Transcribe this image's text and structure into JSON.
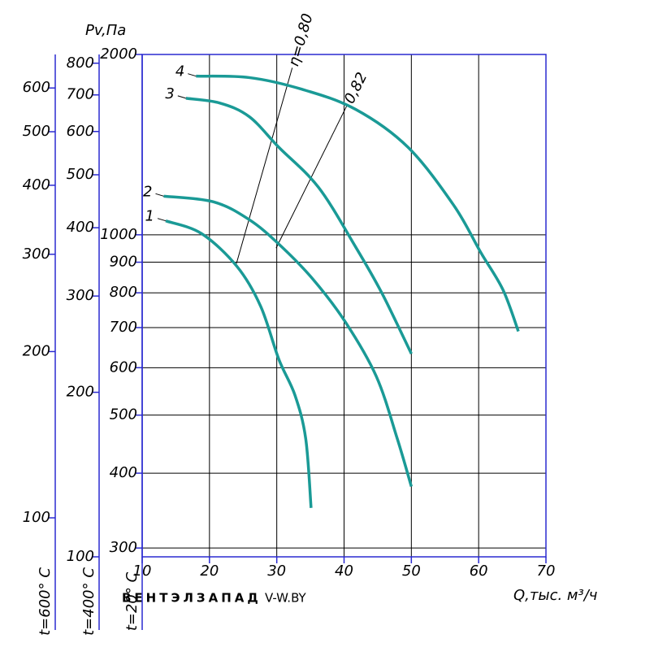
{
  "chart_data": {
    "type": "line",
    "y_label": "Pv,Па",
    "x_label": "Q,тыс. м³/ч",
    "watermark": [
      "ВЕНТЭЛЗАПАД",
      "V-W.BY"
    ],
    "xlim": [
      10,
      70
    ],
    "xticks": [
      10,
      20,
      30,
      40,
      50,
      60,
      70
    ],
    "log_y": true,
    "ylabel": "t=20° C",
    "ylim": [
      290,
      2000
    ],
    "yticks": [
      300,
      400,
      500,
      600,
      700,
      800,
      900,
      1000,
      2000
    ],
    "y2label": "t=400° C",
    "y2lim": [
      100,
      830
    ],
    "y2ticks": [
      100,
      200,
      300,
      400,
      500,
      600,
      700,
      800
    ],
    "y3label": "t=600° C",
    "y3lim": [
      85,
      690
    ],
    "y3ticks": [
      100,
      200,
      300,
      400,
      500,
      600
    ],
    "grid": true,
    "series": [
      {
        "name": "1",
        "color": "#1a9a96",
        "x": [
          13.5,
          18.8,
          24.1,
          27.6,
          30.3,
          32.7,
          34.3,
          35.1
        ],
        "values": [
          1055,
          1005,
          885,
          760,
          620,
          540,
          457,
          350
        ]
      },
      {
        "name": "2",
        "color": "#1a9a96",
        "x": [
          13.2,
          20.6,
          25.9,
          30.3,
          35.3,
          40.2,
          44.8,
          47.9,
          50
        ],
        "values": [
          1160,
          1135,
          1060,
          965,
          845,
          715,
          580,
          457,
          380
        ]
      },
      {
        "name": "3",
        "color": "#1a9a96",
        "x": [
          16.5,
          21.5,
          25.9,
          30.3,
          36.2,
          41.7,
          45.6,
          50
        ],
        "values": [
          1690,
          1660,
          1575,
          1400,
          1200,
          955,
          800,
          633
        ]
      },
      {
        "name": "4",
        "color": "#1a9a96",
        "x": [
          18,
          25.9,
          33.7,
          41.7,
          49.5,
          56.3,
          60.3,
          63.6,
          65.9
        ],
        "values": [
          1840,
          1830,
          1750,
          1620,
          1400,
          1120,
          935,
          810,
          690
        ]
      }
    ],
    "efficiency_lines": [
      {
        "name": "η=0,80",
        "x": [
          24.0,
          32.3
        ],
        "values": [
          895,
          1900
        ]
      },
      {
        "name": "0,82",
        "x": [
          29.9,
          40.5
        ],
        "values": [
          950,
          1650
        ]
      }
    ]
  }
}
